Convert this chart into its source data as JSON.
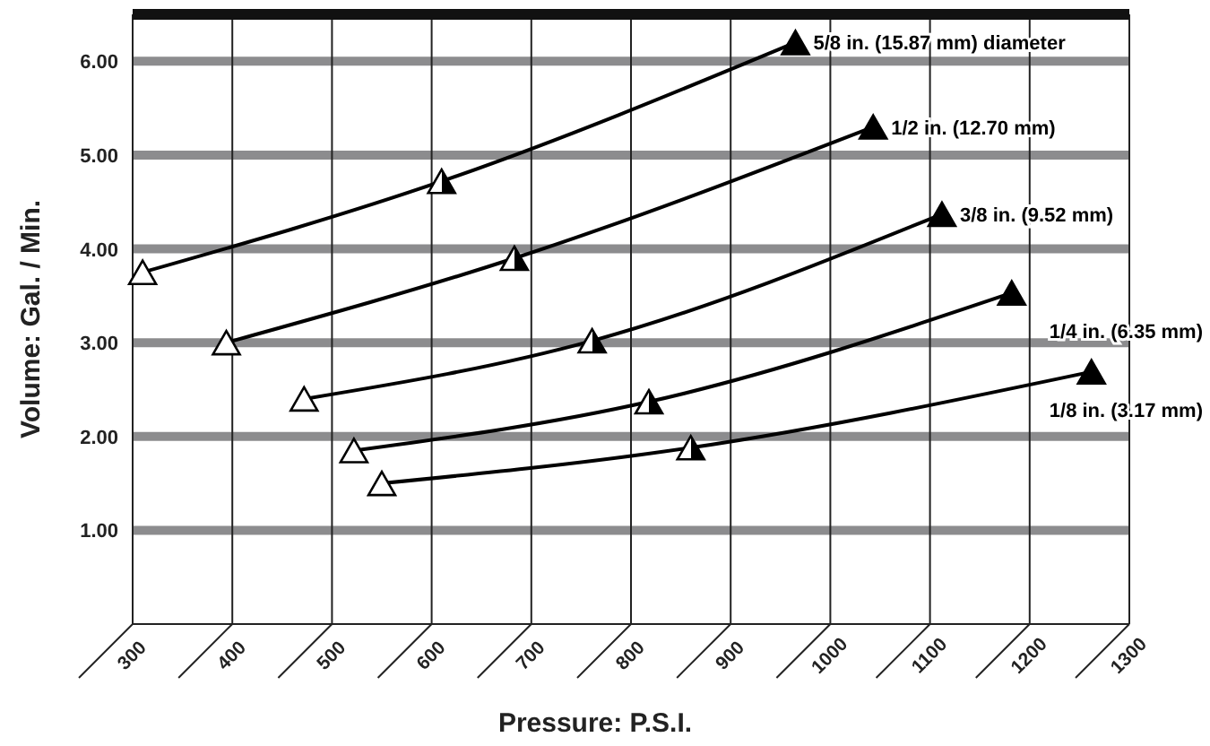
{
  "chart_data": {
    "type": "line",
    "xlabel": "Pressure:  P.S.I.",
    "ylabel": "Volume:  Gal. / Min.",
    "xlim": [
      300,
      1300
    ],
    "xticks": [
      300,
      400,
      500,
      600,
      700,
      800,
      900,
      1000,
      1100,
      1200,
      1300
    ],
    "ylim": [
      0,
      6.5
    ],
    "yticks": [
      {
        "value": 1,
        "label": "1.00"
      },
      {
        "value": 2,
        "label": "2.00"
      },
      {
        "value": 3,
        "label": "3.00"
      },
      {
        "value": 4,
        "label": "4.00"
      },
      {
        "value": 5,
        "label": "5.00"
      },
      {
        "value": 6,
        "label": "6.00"
      }
    ],
    "grid": true,
    "marker": "triangle",
    "line_style": "solid",
    "series": [
      {
        "name": "5/8 in. (15.87 mm) diameter",
        "color": "#000000",
        "x": [
          310,
          610,
          965
        ],
        "values": [
          3.75,
          4.72,
          6.2
        ]
      },
      {
        "name": "1/2 in. (12.70 mm)",
        "color": "#000000",
        "x": [
          394,
          683,
          1043
        ],
        "values": [
          3.0,
          3.9,
          5.3
        ]
      },
      {
        "name": "3/8 in. (9.52 mm)",
        "color": "#000000",
        "x": [
          472,
          761,
          1112
        ],
        "values": [
          2.4,
          3.02,
          4.37
        ]
      },
      {
        "name": "1/4 in. (6.35 mm)",
        "color": "#000000",
        "x": [
          522,
          818,
          1182
        ],
        "values": [
          1.85,
          2.37,
          3.53
        ]
      },
      {
        "name": "1/8 in. (3.17 mm)",
        "color": "#000000",
        "x": [
          550,
          860,
          1262
        ],
        "values": [
          1.5,
          1.88,
          2.69
        ]
      }
    ]
  }
}
